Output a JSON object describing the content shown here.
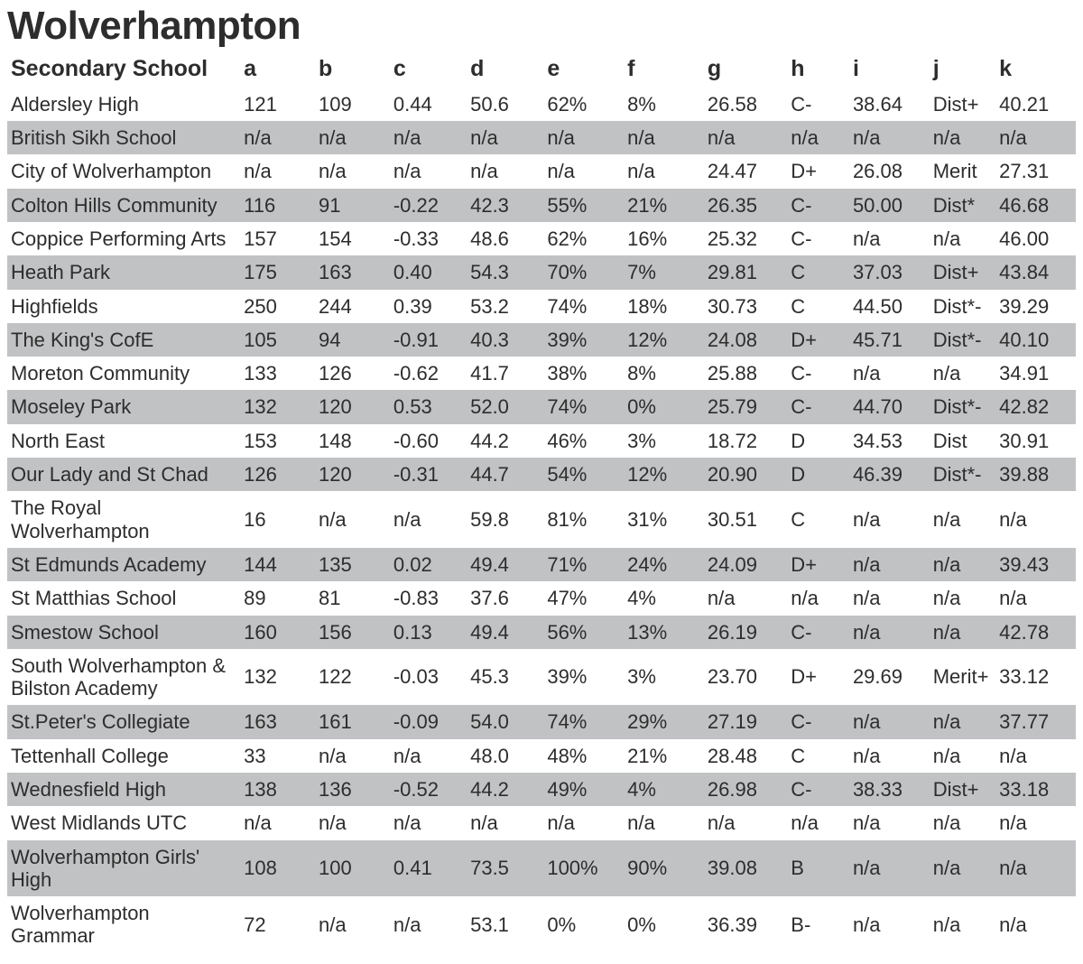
{
  "title": "Wolverhampton",
  "title_fontsize": 44,
  "header_fontsize": 25,
  "cell_fontsize": 22,
  "text_color": "#2d2d2d",
  "background_color": "#ffffff",
  "row_shade_color": "#c1c2c4",
  "column_widths_pct": [
    21.8,
    7.0,
    7.0,
    7.2,
    7.2,
    7.5,
    7.5,
    7.8,
    5.8,
    7.5,
    6.2,
    7.5
  ],
  "columns": [
    "Secondary School",
    "a",
    "b",
    "c",
    "d",
    "e",
    "f",
    "g",
    "h",
    "i",
    "j",
    "k"
  ],
  "rows": [
    {
      "shaded": false,
      "cells": [
        "Aldersley High",
        "121",
        "109",
        "0.44",
        "50.6",
        "62%",
        "8%",
        "26.58",
        "C-",
        "38.64",
        "Dist+",
        "40.21"
      ]
    },
    {
      "shaded": true,
      "cells": [
        "British Sikh School",
        "n/a",
        "n/a",
        "n/a",
        "n/a",
        "n/a",
        "n/a",
        "n/a",
        "n/a",
        "n/a",
        "n/a",
        "n/a"
      ]
    },
    {
      "shaded": false,
      "cells": [
        "City of Wolverhampton",
        "n/a",
        "n/a",
        "n/a",
        "n/a",
        "n/a",
        "n/a",
        "24.47",
        "D+",
        "26.08",
        "Merit",
        "27.31"
      ]
    },
    {
      "shaded": true,
      "cells": [
        "Colton Hills Community",
        "116",
        "91",
        "-0.22",
        "42.3",
        "55%",
        "21%",
        "26.35",
        "C-",
        "50.00",
        "Dist*",
        "46.68"
      ]
    },
    {
      "shaded": false,
      "cells": [
        "Coppice Performing Arts",
        "157",
        "154",
        "-0.33",
        "48.6",
        "62%",
        "16%",
        "25.32",
        "C-",
        "n/a",
        "n/a",
        "46.00"
      ]
    },
    {
      "shaded": true,
      "cells": [
        "Heath Park",
        "175",
        "163",
        "0.40",
        "54.3",
        "70%",
        "7%",
        "29.81",
        "C",
        "37.03",
        "Dist+",
        "43.84"
      ]
    },
    {
      "shaded": false,
      "cells": [
        "Highfields",
        "250",
        "244",
        "0.39",
        "53.2",
        "74%",
        "18%",
        "30.73",
        "C",
        "44.50",
        "Dist*-",
        "39.29"
      ]
    },
    {
      "shaded": true,
      "cells": [
        "The King's CofE",
        "105",
        "94",
        "-0.91",
        "40.3",
        "39%",
        "12%",
        "24.08",
        "D+",
        "45.71",
        "Dist*-",
        "40.10"
      ]
    },
    {
      "shaded": false,
      "cells": [
        "Moreton Community",
        "133",
        "126",
        "-0.62",
        "41.7",
        "38%",
        "8%",
        "25.88",
        "C-",
        "n/a",
        "n/a",
        "34.91"
      ]
    },
    {
      "shaded": true,
      "cells": [
        "Moseley Park",
        "132",
        "120",
        "0.53",
        "52.0",
        "74%",
        "0%",
        "25.79",
        "C-",
        "44.70",
        "Dist*-",
        "42.82"
      ]
    },
    {
      "shaded": false,
      "cells": [
        "North East",
        "153",
        "148",
        "-0.60",
        "44.2",
        "46%",
        "3%",
        "18.72",
        "D",
        "34.53",
        "Dist",
        "30.91"
      ]
    },
    {
      "shaded": true,
      "cells": [
        "Our Lady and St Chad",
        "126",
        "120",
        "-0.31",
        "44.7",
        "54%",
        "12%",
        "20.90",
        "D",
        "46.39",
        "Dist*-",
        "39.88"
      ]
    },
    {
      "shaded": false,
      "cells": [
        "The Royal Wolverhampton",
        "16",
        "n/a",
        "n/a",
        "59.8",
        "81%",
        "31%",
        "30.51",
        "C",
        "n/a",
        "n/a",
        "n/a"
      ]
    },
    {
      "shaded": true,
      "cells": [
        "St Edmunds Academy",
        "144",
        "135",
        "0.02",
        "49.4",
        "71%",
        "24%",
        "24.09",
        "D+",
        "n/a",
        "n/a",
        "39.43"
      ]
    },
    {
      "shaded": false,
      "cells": [
        "St Matthias School",
        "89",
        "81",
        "-0.83",
        "37.6",
        "47%",
        "4%",
        "n/a",
        "n/a",
        "n/a",
        "n/a",
        "n/a"
      ]
    },
    {
      "shaded": true,
      "cells": [
        "Smestow School",
        "160",
        "156",
        "0.13",
        "49.4",
        "56%",
        "13%",
        "26.19",
        "C-",
        "n/a",
        "n/a",
        "42.78"
      ]
    },
    {
      "shaded": false,
      "cells": [
        "South Wolverhampton & Bilston Academy",
        "132",
        "122",
        "-0.03",
        "45.3",
        "39%",
        "3%",
        "23.70",
        "D+",
        "29.69",
        "Merit+",
        "33.12"
      ]
    },
    {
      "shaded": true,
      "cells": [
        "St.Peter's Collegiate",
        "163",
        "161",
        "-0.09",
        "54.0",
        "74%",
        "29%",
        "27.19",
        "C-",
        "n/a",
        "n/a",
        "37.77"
      ]
    },
    {
      "shaded": false,
      "cells": [
        "Tettenhall College",
        "33",
        "n/a",
        "n/a",
        "48.0",
        "48%",
        "21%",
        "28.48",
        "C",
        "n/a",
        "n/a",
        "n/a"
      ]
    },
    {
      "shaded": true,
      "cells": [
        "Wednesfield High",
        "138",
        "136",
        "-0.52",
        "44.2",
        "49%",
        "4%",
        "26.98",
        "C-",
        "38.33",
        "Dist+",
        "33.18"
      ]
    },
    {
      "shaded": false,
      "cells": [
        "West Midlands UTC",
        "n/a",
        "n/a",
        "n/a",
        "n/a",
        "n/a",
        "n/a",
        "n/a",
        "n/a",
        "n/a",
        "n/a",
        "n/a"
      ]
    },
    {
      "shaded": true,
      "cells": [
        "Wolverhampton Girls' High",
        "108",
        "100",
        "0.41",
        "73.5",
        "100%",
        "90%",
        "39.08",
        "B",
        "n/a",
        "n/a",
        "n/a"
      ]
    },
    {
      "shaded": false,
      "cells": [
        "Wolverhampton Grammar",
        "72",
        "n/a",
        "n/a",
        "53.1",
        "0%",
        "0%",
        "36.39",
        "B-",
        "n/a",
        "n/a",
        "n/a"
      ]
    }
  ]
}
